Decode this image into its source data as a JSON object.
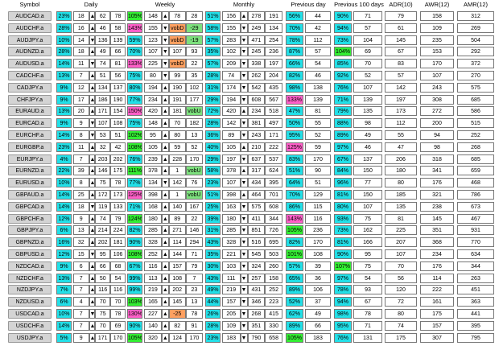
{
  "headers": [
    "Symbol",
    "Daily",
    "Weekly",
    "Monthly",
    "Previous day",
    "Previous 100 days",
    "ADR(10)",
    "AWR(12)",
    "AMR(12)"
  ],
  "rows": [
    {
      "symbol": "AUDCAD.a",
      "daily": [
        "23%",
        "18",
        "▲",
        "62",
        "78"
      ],
      "weekly": [
        "105%",
        "148",
        "▲",
        "78",
        "28"
      ],
      "monthly": [
        "51%",
        "156",
        "▲",
        "278",
        "191"
      ],
      "prev": [
        "56%",
        "44"
      ],
      "prev100": [
        "90%",
        "71"
      ],
      "avg": [
        "79",
        "158",
        "312"
      ]
    },
    {
      "symbol": "AUDCHF.a",
      "daily": [
        "28%",
        "16",
        "▲",
        "46",
        "58"
      ],
      "weekly": [
        "143%",
        "155",
        "▼",
        "vobD",
        "-29"
      ],
      "monthly": [
        "58%",
        "155",
        "▼",
        "249",
        "134"
      ],
      "prev": [
        "70%",
        "42"
      ],
      "prev100": [
        "94%",
        "57"
      ],
      "avg": [
        "61",
        "109",
        "269"
      ]
    },
    {
      "symbol": "AUDJPY.a",
      "daily": [
        "10%",
        "14",
        "▼",
        "136",
        "139"
      ],
      "weekly": [
        "59%",
        "123",
        "▼",
        "vobD",
        "-19"
      ],
      "monthly": [
        "57%",
        "283",
        "▼",
        "471",
        "254"
      ],
      "prev": [
        "78%",
        "112"
      ],
      "prev100": [
        "73%",
        "104"
      ],
      "avg": [
        "145",
        "235",
        "504"
      ]
    },
    {
      "symbol": "AUDNZD.a",
      "daily": [
        "28%",
        "18",
        "▲",
        "49",
        "66"
      ],
      "weekly": [
        "70%",
        "107",
        "▼",
        "107",
        "93"
      ],
      "monthly": [
        "35%",
        "102",
        "▼",
        "245",
        "236"
      ],
      "prev": [
        "87%",
        "57"
      ],
      "prev100": [
        "104%",
        "69"
      ],
      "avg": [
        "67",
        "153",
        "292"
      ]
    },
    {
      "symbol": "AUDUSD.a",
      "daily": [
        "14%",
        "11",
        "▼",
        "74",
        "81"
      ],
      "weekly": [
        "133%",
        "225",
        "▼",
        "vobD",
        "22"
      ],
      "monthly": [
        "57%",
        "209",
        "▼",
        "338",
        "197"
      ],
      "prev": [
        "66%",
        "54"
      ],
      "prev100": [
        "85%",
        "70"
      ],
      "avg": [
        "83",
        "170",
        "372"
      ]
    },
    {
      "symbol": "CADCHF.a",
      "daily": [
        "13%",
        "7",
        "▲",
        "51",
        "56"
      ],
      "weekly": [
        "75%",
        "80",
        "▼",
        "99",
        "35"
      ],
      "monthly": [
        "28%",
        "74",
        "▼",
        "262",
        "204"
      ],
      "prev": [
        "82%",
        "46"
      ],
      "prev100": [
        "92%",
        "52"
      ],
      "avg": [
        "57",
        "107",
        "270"
      ]
    },
    {
      "symbol": "CADJPY.a",
      "daily": [
        "9%",
        "12",
        "▲",
        "134",
        "137"
      ],
      "weekly": [
        "80%",
        "194",
        "▲",
        "190",
        "102"
      ],
      "monthly": [
        "31%",
        "174",
        "▼",
        "542",
        "435"
      ],
      "prev": [
        "98%",
        "138"
      ],
      "prev100": [
        "76%",
        "107"
      ],
      "avg": [
        "142",
        "243",
        "575"
      ]
    },
    {
      "symbol": "CHFJPY.a",
      "daily": [
        "9%",
        "17",
        "▲",
        "186",
        "190"
      ],
      "weekly": [
        "77%",
        "234",
        "▲",
        "191",
        "177"
      ],
      "monthly": [
        "29%",
        "194",
        "▼",
        "608",
        "567"
      ],
      "prev": [
        "133%",
        "139"
      ],
      "prev100": [
        "71%",
        "139"
      ],
      "avg": [
        "197",
        "308",
        "685"
      ]
    },
    {
      "symbol": "EURAUD.a",
      "daily": [
        "13%",
        "20",
        "▲",
        "171",
        "154"
      ],
      "weekly": [
        "150%",
        "420",
        "▲",
        "181",
        "vobU"
      ],
      "monthly": [
        "72%",
        "420",
        "▲",
        "234",
        "518"
      ],
      "prev": [
        "47%",
        "81"
      ],
      "prev100": [
        "79%",
        "135"
      ],
      "avg": [
        "173",
        "272",
        "586"
      ]
    },
    {
      "symbol": "EURCAD.a",
      "daily": [
        "9%",
        "9",
        "▼",
        "107",
        "108"
      ],
      "weekly": [
        "75%",
        "148",
        "▲",
        "70",
        "182"
      ],
      "monthly": [
        "28%",
        "142",
        "▼",
        "381",
        "497"
      ],
      "prev": [
        "50%",
        "55"
      ],
      "prev100": [
        "88%",
        "98"
      ],
      "avg": [
        "112",
        "200",
        "515"
      ]
    },
    {
      "symbol": "EURCHF.a",
      "daily": [
        "14%",
        "8",
        "▼",
        "53",
        "51"
      ],
      "weekly": [
        "102%",
        "95",
        "▲",
        "80",
        "13"
      ],
      "monthly": [
        "36%",
        "89",
        "▼",
        "243",
        "171"
      ],
      "prev": [
        "95%",
        "52"
      ],
      "prev100": [
        "89%",
        "49"
      ],
      "avg": [
        "55",
        "94",
        "252"
      ]
    },
    {
      "symbol": "EURGBP.a",
      "daily": [
        "23%",
        "11",
        "▲",
        "32",
        "42"
      ],
      "weekly": [
        "108%",
        "105",
        "▲",
        "59",
        "52"
      ],
      "monthly": [
        "40%",
        "105",
        "▲",
        "210",
        "222"
      ],
      "prev": [
        "125%",
        "59"
      ],
      "prev100": [
        "97%",
        "46"
      ],
      "avg": [
        "47",
        "98",
        "268"
      ]
    },
    {
      "symbol": "EURJPY.a",
      "daily": [
        "4%",
        "7",
        "▲",
        "203",
        "202"
      ],
      "weekly": [
        "76%",
        "239",
        "▲",
        "228",
        "170"
      ],
      "monthly": [
        "29%",
        "197",
        "▼",
        "637",
        "537"
      ],
      "prev": [
        "83%",
        "170"
      ],
      "prev100": [
        "67%",
        "137"
      ],
      "avg": [
        "206",
        "318",
        "685"
      ]
    },
    {
      "symbol": "EURNZD.a",
      "daily": [
        "22%",
        "39",
        "▲",
        "146",
        "175"
      ],
      "weekly": [
        "111%",
        "378",
        "▲",
        "1",
        "vobU"
      ],
      "monthly": [
        "58%",
        "378",
        "▲",
        "317",
        "624"
      ],
      "prev": [
        "51%",
        "90"
      ],
      "prev100": [
        "84%",
        "150"
      ],
      "avg": [
        "180",
        "341",
        "659"
      ]
    },
    {
      "symbol": "EURUSD.a",
      "daily": [
        "10%",
        "8",
        "▲",
        "75",
        "78"
      ],
      "weekly": [
        "77%",
        "134",
        "▼",
        "142",
        "76"
      ],
      "monthly": [
        "23%",
        "107",
        "▼",
        "434",
        "395"
      ],
      "prev": [
        "64%",
        "51"
      ],
      "prev100": [
        "96%",
        "77"
      ],
      "avg": [
        "80",
        "176",
        "468"
      ]
    },
    {
      "symbol": "GBPAUD.a",
      "daily": [
        "14%",
        "25",
        "▲",
        "172",
        "173"
      ],
      "weekly": [
        "125%",
        "398",
        "▲",
        "1",
        "vobU"
      ],
      "monthly": [
        "51%",
        "398",
        "▲",
        "464",
        "701"
      ],
      "prev": [
        "70%",
        "129"
      ],
      "prev100": [
        "81%",
        "150"
      ],
      "avg": [
        "185",
        "321",
        "786"
      ]
    },
    {
      "symbol": "GBPCAD.a",
      "daily": [
        "14%",
        "18",
        "▼",
        "119",
        "133"
      ],
      "weekly": [
        "71%",
        "168",
        "▲",
        "140",
        "167"
      ],
      "monthly": [
        "25%",
        "163",
        "▼",
        "575",
        "608"
      ],
      "prev": [
        "86%",
        "115"
      ],
      "prev100": [
        "80%",
        "107"
      ],
      "avg": [
        "135",
        "238",
        "673"
      ]
    },
    {
      "symbol": "GBPCHF.a",
      "daily": [
        "12%",
        "9",
        "▲",
        "74",
        "79"
      ],
      "weekly": [
        "124%",
        "180",
        "▲",
        "89",
        "22"
      ],
      "monthly": [
        "39%",
        "180",
        "▼",
        "411",
        "344"
      ],
      "prev": [
        "143%",
        "116"
      ],
      "prev100": [
        "93%",
        "75"
      ],
      "avg": [
        "81",
        "145",
        "467"
      ]
    },
    {
      "symbol": "GBPJPY.a",
      "daily": [
        "6%",
        "13",
        "▲",
        "214",
        "224"
      ],
      "weekly": [
        "82%",
        "285",
        "▲",
        "271",
        "146"
      ],
      "monthly": [
        "31%",
        "285",
        "▼",
        "851",
        "726"
      ],
      "prev": [
        "105%",
        "236"
      ],
      "prev100": [
        "73%",
        "162"
      ],
      "avg": [
        "225",
        "351",
        "931"
      ]
    },
    {
      "symbol": "GBPNZD.a",
      "daily": [
        "16%",
        "32",
        "▲",
        "202",
        "181"
      ],
      "weekly": [
        "90%",
        "328",
        "▲",
        "114",
        "294"
      ],
      "monthly": [
        "43%",
        "328",
        "▼",
        "516",
        "695"
      ],
      "prev": [
        "82%",
        "170"
      ],
      "prev100": [
        "81%",
        "166"
      ],
      "avg": [
        "207",
        "368",
        "770"
      ]
    },
    {
      "symbol": "GBPUSD.a",
      "daily": [
        "12%",
        "15",
        "▼",
        "95",
        "106"
      ],
      "weekly": [
        "108%",
        "252",
        "▲",
        "144",
        "71"
      ],
      "monthly": [
        "35%",
        "221",
        "▼",
        "545",
        "503"
      ],
      "prev": [
        "101%",
        "108"
      ],
      "prev100": [
        "90%",
        "95"
      ],
      "avg": [
        "107",
        "234",
        "634"
      ]
    },
    {
      "symbol": "NZDCAD.a",
      "daily": [
        "9%",
        "6",
        "▲",
        "66",
        "68"
      ],
      "weekly": [
        "67%",
        "116",
        "▲",
        "157",
        "79"
      ],
      "monthly": [
        "30%",
        "103",
        "▼",
        "324",
        "260"
      ],
      "prev": [
        "57%",
        "39"
      ],
      "prev100": [
        "107%",
        "75"
      ],
      "avg": [
        "70",
        "176",
        "344"
      ]
    },
    {
      "symbol": "NZDCHF.a",
      "daily": [
        "13%",
        "7",
        "▲",
        "50",
        "54"
      ],
      "weekly": [
        "99%",
        "113",
        "▲",
        "108",
        "7"
      ],
      "monthly": [
        "43%",
        "111",
        "▼",
        "257",
        "158"
      ],
      "prev": [
        "65%",
        "36"
      ],
      "prev100": [
        "97%",
        "54"
      ],
      "avg": [
        "56",
        "114",
        "263"
      ]
    },
    {
      "symbol": "NZDJPY.a",
      "daily": [
        "7%",
        "7",
        "▲",
        "116",
        "116"
      ],
      "weekly": [
        "99%",
        "219",
        "▲",
        "202",
        "23"
      ],
      "monthly": [
        "49%",
        "219",
        "▼",
        "431",
        "252"
      ],
      "prev": [
        "89%",
        "106"
      ],
      "prev100": [
        "78%",
        "93"
      ],
      "avg": [
        "120",
        "222",
        "451"
      ]
    },
    {
      "symbol": "NZDUSD.a",
      "daily": [
        "6%",
        "4",
        "▲",
        "70",
        "70"
      ],
      "weekly": [
        "103%",
        "165",
        "▲",
        "145",
        "13"
      ],
      "monthly": [
        "44%",
        "157",
        "▼",
        "346",
        "223"
      ],
      "prev": [
        "52%",
        "37"
      ],
      "prev100": [
        "94%",
        "67"
      ],
      "avg": [
        "72",
        "161",
        "363"
      ]
    },
    {
      "symbol": "USDCAD.a",
      "daily": [
        "10%",
        "7",
        "▼",
        "75",
        "78"
      ],
      "weekly": [
        "130%",
        "227",
        "▲",
        "-25",
        "78"
      ],
      "monthly": [
        "26%",
        "205",
        "▼",
        "268",
        "415"
      ],
      "prev": [
        "62%",
        "49"
      ],
      "prev100": [
        "98%",
        "78"
      ],
      "avg": [
        "80",
        "175",
        "441"
      ]
    },
    {
      "symbol": "USDCHF.a",
      "daily": [
        "14%",
        "7",
        "▲",
        "70",
        "69"
      ],
      "weekly": [
        "90%",
        "140",
        "▲",
        "82",
        "91"
      ],
      "monthly": [
        "28%",
        "109",
        "▼",
        "351",
        "330"
      ],
      "prev": [
        "89%",
        "66"
      ],
      "prev100": [
        "95%",
        "71"
      ],
      "avg": [
        "74",
        "157",
        "395"
      ]
    },
    {
      "symbol": "USDJPY.a",
      "daily": [
        "5%",
        "9",
        "▲",
        "171",
        "170"
      ],
      "weekly": [
        "105%",
        "320",
        "▲",
        "124",
        "170"
      ],
      "monthly": [
        "23%",
        "183",
        "▼",
        "790",
        "658"
      ],
      "prev": [
        "105%",
        "183"
      ],
      "prev100": [
        "76%",
        "131"
      ],
      "avg": [
        "175",
        "307",
        "795"
      ]
    }
  ]
}
